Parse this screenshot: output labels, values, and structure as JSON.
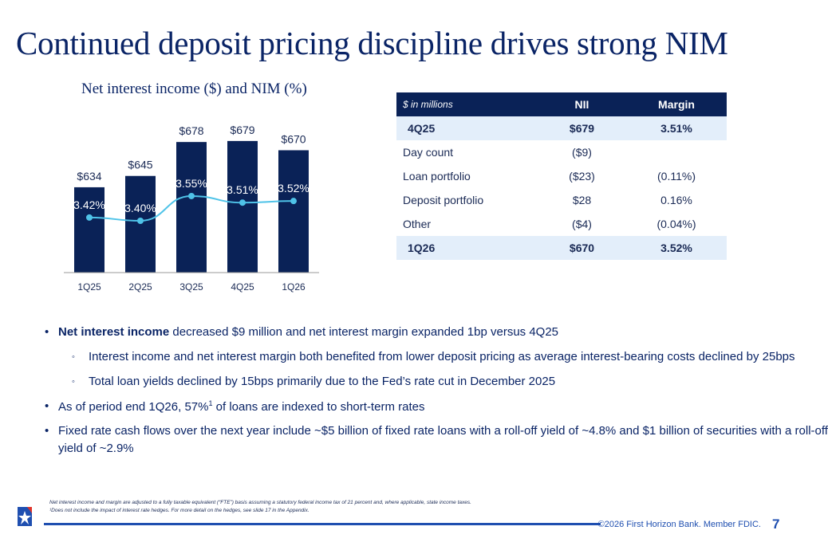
{
  "title": "Continued deposit pricing discipline drives strong NIM",
  "chart_subtitle": "Net interest income ($) and NIM (%)",
  "chart_data": {
    "type": "bar+line",
    "categories": [
      "1Q25",
      "2Q25",
      "3Q25",
      "4Q25",
      "1Q26"
    ],
    "series": [
      {
        "type": "bar",
        "values": [
          634,
          645,
          678,
          679,
          670
        ],
        "labels": [
          "$634",
          "$645",
          "$678",
          "$679",
          "$670"
        ],
        "color": "#0a2257"
      },
      {
        "type": "line",
        "values": [
          3.42,
          3.4,
          3.55,
          3.51,
          3.52
        ],
        "labels": [
          "3.42%",
          "3.40%",
          "3.55%",
          "3.51%",
          "3.52%"
        ],
        "color": "#4fc3e8"
      }
    ],
    "title": "Net interest income ($) and NIM (%)",
    "grid": false
  },
  "table": {
    "headers": [
      "$ in millions",
      "NII",
      "Margin"
    ],
    "rows": [
      {
        "label": "4Q25",
        "nii": "$679",
        "margin": "3.51%",
        "highlight": true
      },
      {
        "label": "Day count",
        "nii": "($9)",
        "margin": ""
      },
      {
        "label": "Loan portfolio",
        "nii": "($23)",
        "margin": "(0.11%)"
      },
      {
        "label": "Deposit portfolio",
        "nii": "$28",
        "margin": "0.16%"
      },
      {
        "label": "Other",
        "nii": "($4)",
        "margin": "(0.04%)"
      },
      {
        "label": "1Q26",
        "nii": "$670",
        "margin": "3.52%",
        "highlight": true
      }
    ]
  },
  "bullets": {
    "b1_bold": "Net interest income",
    "b1_rest": " decreased $9 million and net interest margin expanded 1bp versus 4Q25",
    "s1": "Interest income and net interest margin both benefited from lower deposit pricing as average interest-bearing costs declined by 25bps",
    "s2": "Total loan yields declined by 15bps primarily due to the Fed’s rate cut in December 2025",
    "b2_a": "As of period end 1Q26, 57%",
    "b2_sup": "1",
    "b2_b": " of loans are indexed to short-term rates",
    "b3_l1": "Fixed rate cash flows over the next year include ~$5 billion of fixed rate loans with a roll-off yield of ~4.8% and $1 billion of securities with a roll-off",
    "b3_l2": "yield of ~2.9%"
  },
  "footnotes": {
    "f1": "Net interest income and margin are adjusted to a fully taxable equivalent (“FTE”) basis assuming a statutory federal income tax of 21 percent and, where applicable, state income taxes.",
    "f2": "¹Does not include the impact of interest rate hedges. For more detail on the hedges, see slide 17 in the Appendix."
  },
  "footer": {
    "copyright": "©2026 First Horizon Bank. Member FDIC.",
    "page": "7"
  }
}
